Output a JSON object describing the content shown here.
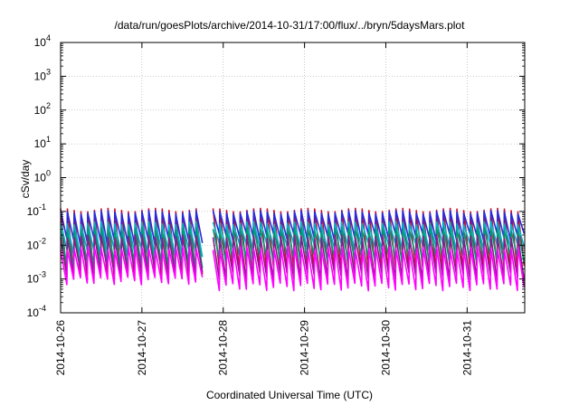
{
  "chart_data": {
    "type": "line",
    "title": "/data/run/goesPlots/archive/2014-10-31/17:00/flux/../bryn/5daysMars.plot",
    "xlabel": "Coordinated Universal Time (UTC)",
    "ylabel": "cSv/day",
    "yscale": "log",
    "ylim": [
      0.0001,
      10000
    ],
    "xlim": [
      "2014-10-26T00:00",
      "2014-10-31T17:00"
    ],
    "grid": true,
    "y_ticks": [
      {
        "base": "10",
        "exp": "4"
      },
      {
        "base": "10",
        "exp": "3"
      },
      {
        "base": "10",
        "exp": "2"
      },
      {
        "base": "10",
        "exp": "1"
      },
      {
        "base": "10",
        "exp": "0"
      },
      {
        "base": "10",
        "exp": "-1"
      },
      {
        "base": "10",
        "exp": "-2"
      },
      {
        "base": "10",
        "exp": "-3"
      },
      {
        "base": "10",
        "exp": "-4"
      }
    ],
    "x_ticks": [
      "2014-10-26",
      "2014-10-27",
      "2014-10-28",
      "2014-10-29",
      "2014-10-30",
      "2014-10-31"
    ],
    "sawtooth": {
      "period_hours": 2,
      "gap_start": "2014-10-27T18:00",
      "gap_end": "2014-10-27T21:00"
    },
    "series": [
      {
        "color": "#c8102e",
        "peak": 0.11,
        "trough_early": 0.0012,
        "trough_late": 0.002
      },
      {
        "color": "#2a2ad8",
        "peak": 0.095,
        "trough_early": 0.013,
        "trough_late": 0.018
      },
      {
        "color": "#00b0c8",
        "peak": 0.045,
        "trough_early": 0.006,
        "trough_late": 0.009
      },
      {
        "color": "#009a70",
        "peak": 0.03,
        "trough_early": 0.0025,
        "trough_late": 0.004
      },
      {
        "color": "#8a1a8a",
        "peak": 0.018,
        "trough_early": 0.0015,
        "trough_late": 0.0012
      },
      {
        "color": "#ff00ff",
        "peak": 0.008,
        "trough_early": 0.0009,
        "trough_late": 0.0006
      }
    ]
  }
}
